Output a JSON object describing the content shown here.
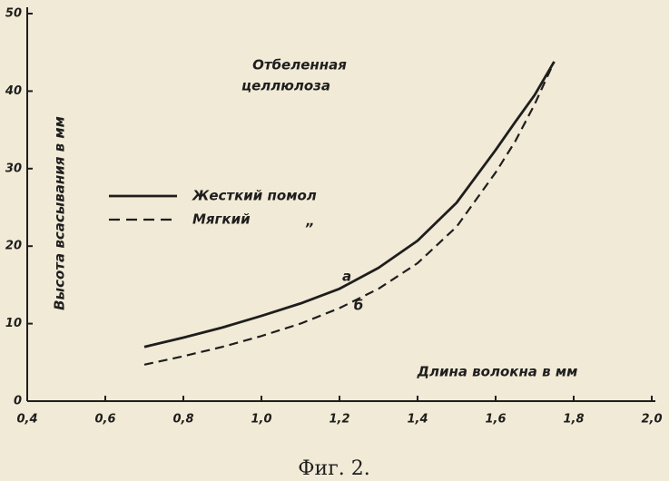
{
  "chart_data": {
    "type": "line",
    "caption": "Фиг. 2.",
    "x_label": "Длина волокна в мм",
    "y_label": "Высота всасывания в мм",
    "annotation": [
      "Отбеленная",
      "целлюлоза"
    ],
    "legend_ditto": "„",
    "x": [
      0.7,
      0.8,
      0.9,
      1.0,
      1.1,
      1.2,
      1.3,
      1.4,
      1.5,
      1.6,
      1.65,
      1.7,
      1.75
    ],
    "series": [
      {
        "name": "Жесткий помол",
        "label": "а",
        "color": "#1e1e1e",
        "dash": false,
        "values": [
          7,
          8.2,
          9.5,
          11,
          12.6,
          14.5,
          17.2,
          20.7,
          25.6,
          32.4,
          36,
          39.5,
          43.8
        ]
      },
      {
        "name": "Мягкий",
        "label": "б",
        "color": "#1e1e1e",
        "dash": true,
        "values": [
          4.7,
          5.8,
          7,
          8.4,
          10,
          12,
          14.5,
          17.8,
          22.5,
          29.5,
          33.5,
          38.3,
          43.8
        ]
      }
    ],
    "xlim": [
      0.4,
      2.0
    ],
    "xticks": [
      {
        "value": 0.4,
        "label": "0,4"
      },
      {
        "value": 0.6,
        "label": "0,6"
      },
      {
        "value": 0.8,
        "label": "0,8"
      },
      {
        "value": 1.0,
        "label": "1,0"
      },
      {
        "value": 1.2,
        "label": "1,2"
      },
      {
        "value": 1.4,
        "label": "1,4"
      },
      {
        "value": 1.6,
        "label": "1,6"
      },
      {
        "value": 1.8,
        "label": "1,8"
      },
      {
        "value": 2.0,
        "label": "2,0"
      }
    ],
    "ylim": [
      0,
      50
    ],
    "yticks": [
      0,
      10,
      20,
      30,
      40,
      50
    ]
  }
}
